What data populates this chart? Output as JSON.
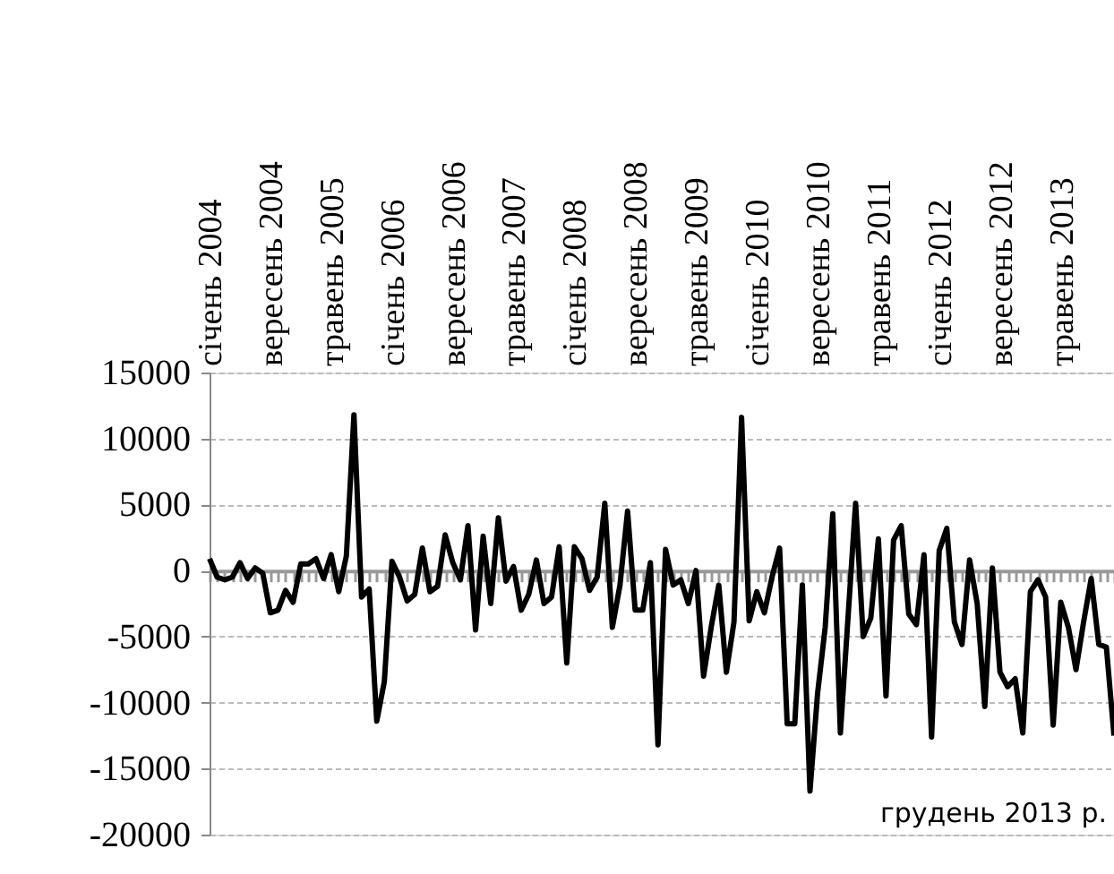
{
  "chart_data": {
    "type": "line",
    "categories": [
      "січень 2004",
      null,
      null,
      null,
      null,
      null,
      null,
      null,
      "вересень 2004",
      null,
      null,
      null,
      null,
      null,
      null,
      null,
      "травень 2005",
      null,
      null,
      null,
      null,
      null,
      null,
      null,
      "січень 2006",
      null,
      null,
      null,
      null,
      null,
      null,
      null,
      "вересень 2006",
      null,
      null,
      null,
      null,
      null,
      null,
      null,
      "травень 2007",
      null,
      null,
      null,
      null,
      null,
      null,
      null,
      "січень 2008",
      null,
      null,
      null,
      null,
      null,
      null,
      null,
      "вересень 2008",
      null,
      null,
      null,
      null,
      null,
      null,
      null,
      "травень 2009",
      null,
      null,
      null,
      null,
      null,
      null,
      null,
      "січень 2010",
      null,
      null,
      null,
      null,
      null,
      null,
      null,
      "вересень 2010",
      null,
      null,
      null,
      null,
      null,
      null,
      null,
      "травень 2011",
      null,
      null,
      null,
      null,
      null,
      null,
      null,
      "січень 2012",
      null,
      null,
      null,
      null,
      null,
      null,
      null,
      "вересень 2012",
      null,
      null,
      null,
      null,
      null,
      null,
      null,
      "травень 2013",
      null,
      null,
      null,
      null,
      null,
      null,
      null
    ],
    "series": [
      {
        "color": "#000000",
        "values": [
          900,
          -500,
          -700,
          -500,
          600,
          -600,
          200,
          -200,
          -3200,
          -3000,
          -1500,
          -2400,
          500,
          500,
          900,
          -600,
          1200,
          -1600,
          1100,
          11800,
          -2000,
          -1400,
          -11400,
          -8400,
          700,
          -500,
          -2300,
          -1800,
          1700,
          -1600,
          -1200,
          2700,
          600,
          -700,
          3400,
          -4500,
          2600,
          -2500,
          4000,
          -800,
          300,
          -3000,
          -1800,
          800,
          -2500,
          -2000,
          1800,
          -7000,
          1800,
          900,
          -1500,
          -500,
          5100,
          -4300,
          -1100,
          4500,
          -3000,
          -3000,
          600,
          -13200,
          1600,
          -1100,
          -700,
          -2500,
          0,
          -8000,
          -4300,
          -1100,
          -7700,
          -3900,
          11600,
          -3800,
          -1600,
          -3200,
          -500,
          1700,
          -11600,
          -11600,
          -1100,
          -16700,
          -9300,
          -4300,
          4300,
          -12300,
          -3600,
          5100,
          -5000,
          -3600,
          2400,
          -9500,
          2300,
          3400,
          -3300,
          -4100,
          1200,
          -12600,
          1500,
          3200,
          -3900,
          -5600,
          800,
          -2500,
          -10300,
          200,
          -7700,
          -8800,
          -8200,
          -12300,
          -1600,
          -700,
          -2000,
          -11700,
          -2400,
          -4300,
          -7500,
          -3900,
          -600,
          -5600,
          -5800,
          -12500
        ]
      }
    ],
    "ylim": [
      -20000,
      15000
    ],
    "yticks": [
      -20000,
      -15000,
      -10000,
      -5000,
      0,
      5000,
      10000,
      15000
    ],
    "grid": "y",
    "marker": "none",
    "line_style": "solid",
    "annotations": [
      "грудень 2013 р."
    ]
  }
}
